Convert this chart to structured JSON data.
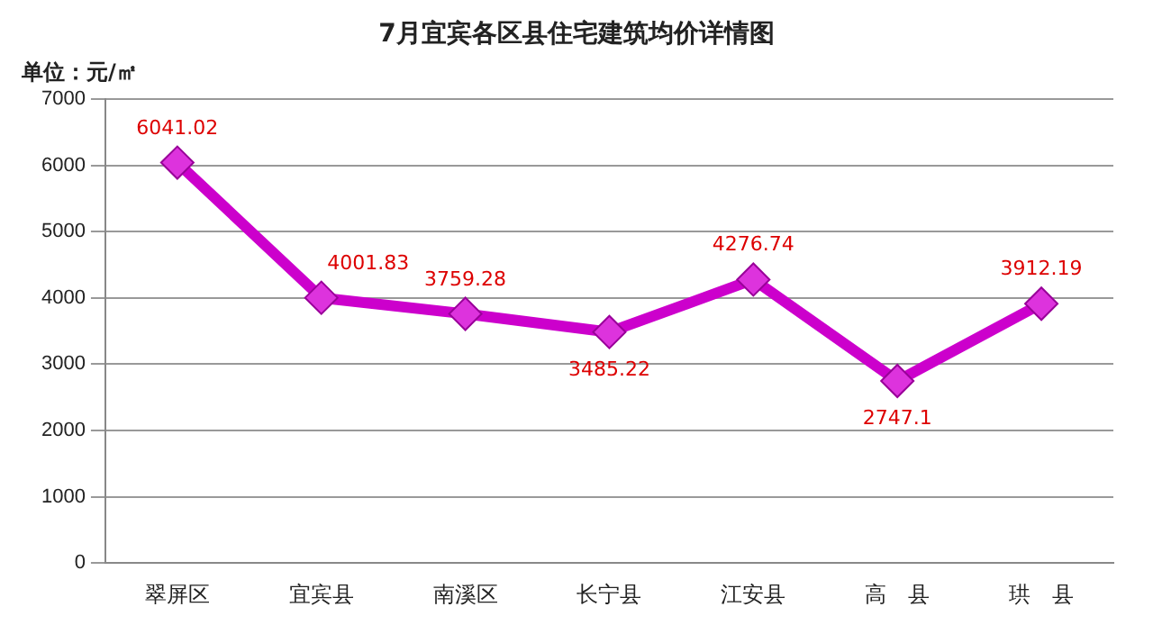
{
  "chart_data": {
    "type": "line",
    "title": "7月宜宾各区县住宅建筑均价详情图",
    "ylabel": "单位：元/㎡",
    "categories": [
      "翠屏区",
      "宜宾县",
      "南溪区",
      "长宁县",
      "江安县",
      "高　县",
      "珙　县"
    ],
    "series": [
      {
        "color": "#cc00cc",
        "values": [
          6041.02,
          4001.83,
          3759.28,
          3485.22,
          4276.74,
          2747.1,
          3912.19
        ]
      }
    ],
    "ylim": [
      0,
      7000
    ],
    "yticks": [
      0,
      1000,
      2000,
      3000,
      4000,
      5000,
      6000,
      7000
    ],
    "grid": "y",
    "legend": false,
    "marker": "diamond",
    "line_style": "solid",
    "data_labels": true
  }
}
